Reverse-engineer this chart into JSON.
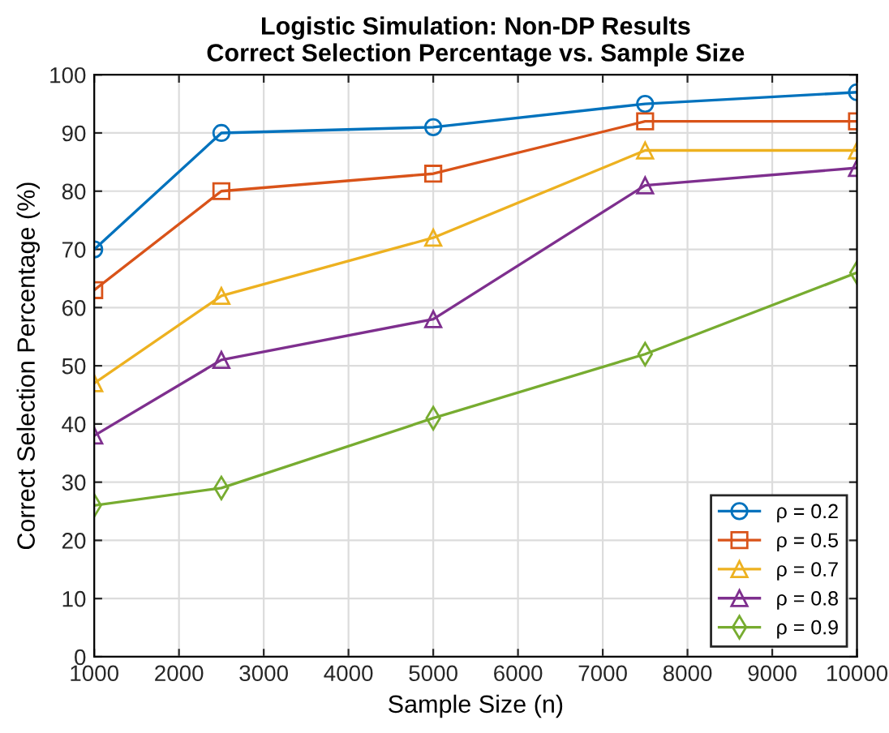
{
  "chart_data": {
    "type": "line",
    "title": "Logistic Simulation: Non-DP Results\nCorrect Selection Percentage vs. Sample Size",
    "xlabel": "Sample Size (n)",
    "ylabel": "Correct Selection Percentage (%)",
    "x": [
      1000,
      2500,
      5000,
      7500,
      10000
    ],
    "series": [
      {
        "name": "ρ = 0.2",
        "color": "#0072bd",
        "marker": "circle",
        "values": [
          70,
          90,
          91,
          95,
          97
        ]
      },
      {
        "name": "ρ = 0.5",
        "color": "#d95319",
        "marker": "square",
        "values": [
          63,
          80,
          83,
          92,
          92
        ]
      },
      {
        "name": "ρ = 0.7",
        "color": "#edb120",
        "marker": "triangle",
        "values": [
          47,
          62,
          72,
          87,
          87
        ]
      },
      {
        "name": "ρ = 0.8",
        "color": "#7e2f8e",
        "marker": "triangle",
        "values": [
          38,
          51,
          58,
          81,
          84
        ]
      },
      {
        "name": "ρ = 0.9",
        "color": "#77ac30",
        "marker": "diamond",
        "values": [
          26,
          29,
          41,
          52,
          66
        ]
      }
    ],
    "xlim": [
      1000,
      10000
    ],
    "xticks": [
      1000,
      2000,
      3000,
      4000,
      5000,
      6000,
      7000,
      8000,
      9000,
      10000
    ],
    "ylim": [
      0,
      100
    ],
    "yticks": [
      0,
      10,
      20,
      30,
      40,
      50,
      60,
      70,
      80,
      90,
      100
    ],
    "grid": true,
    "legend": "bottom right",
    "line_style": "solid"
  }
}
